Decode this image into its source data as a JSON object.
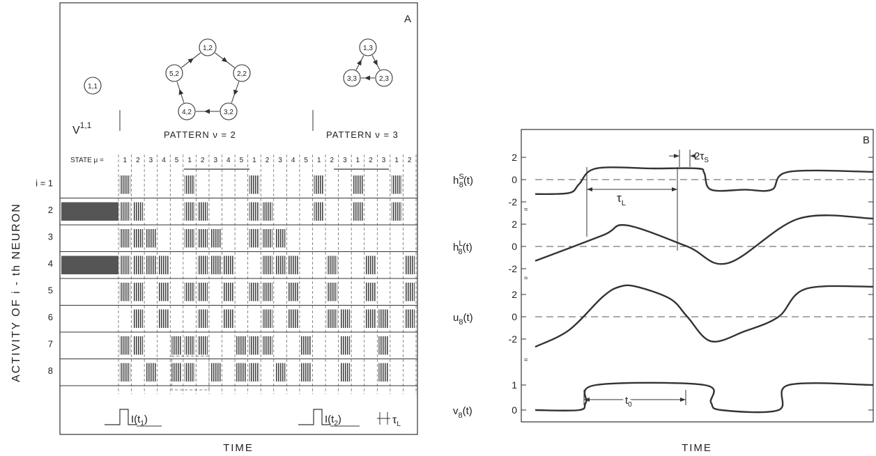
{
  "panel_a": {
    "label": "A",
    "ylabel": "ACTIVITY OF i - th NEURON",
    "xlabel": "TIME",
    "header_v": "V",
    "header_v_sup": "1,1",
    "pattern2_label": "PATTERN  ν = 2",
    "pattern3_label": "PATTERN  ν = 3",
    "state_label": "STATE μ =",
    "state_sequence": [
      "1",
      "2",
      "3",
      "4",
      "5",
      "1",
      "2",
      "3",
      "4",
      "5",
      "1",
      "2",
      "3",
      "4",
      "5",
      "1",
      "2",
      "3",
      "1",
      "2",
      "3",
      "1",
      "2"
    ],
    "row_labels": [
      "i = 1",
      "2",
      "3",
      "4",
      "5",
      "6",
      "7",
      "8"
    ],
    "input1_label": "I(t",
    "input1_sub": "1",
    "input2_label": "I(t",
    "input2_sub": "2",
    "tau_label": "τ",
    "tau_sub": "L",
    "graph_nodes": {
      "single": "1,1",
      "cycle2": [
        "1,2",
        "2,2",
        "3,2",
        "4,2",
        "5,2"
      ],
      "cycle3": [
        "1,3",
        "2,3",
        "3,3"
      ]
    }
  },
  "panel_b": {
    "label": "B",
    "xlabel": "TIME",
    "tau_L": "τ",
    "tau_L_sub": "L",
    "two_tau_s": "2τ",
    "two_tau_s_sub": "S",
    "t0": "t",
    "t0_sub": "0"
  },
  "chart_data": [
    {
      "type": "raster",
      "title": "",
      "xlabel": "TIME",
      "ylabel": "ACTIVITY OF i - th NEURON",
      "rows": [
        "1",
        "2",
        "3",
        "4",
        "5",
        "6",
        "7",
        "8"
      ],
      "states": [
        "1,1",
        "1,2",
        "2,2",
        "3,2",
        "4,2",
        "5,2",
        "1,2",
        "2,2",
        "3,2",
        "4,2",
        "5,2",
        "1,2",
        "2,2",
        "3,2",
        "4,2",
        "5,2",
        "1,3",
        "2,3",
        "3,3",
        "1,3",
        "2,3",
        "3,3",
        "1,3",
        "2,3"
      ],
      "activity": {
        "1": [
          0,
          1,
          0,
          0,
          0,
          0,
          1,
          0,
          0,
          0,
          0,
          1,
          0,
          0,
          0,
          0,
          1,
          0,
          0,
          1,
          0,
          0,
          1,
          0
        ],
        "2": [
          1,
          1,
          1,
          0,
          0,
          0,
          1,
          1,
          0,
          0,
          0,
          1,
          1,
          0,
          0,
          0,
          1,
          0,
          0,
          1,
          0,
          0,
          1,
          0
        ],
        "3": [
          0,
          1,
          1,
          1,
          0,
          0,
          1,
          1,
          1,
          0,
          0,
          1,
          1,
          1,
          0,
          0,
          0,
          0,
          0,
          0,
          0,
          0,
          0,
          0
        ],
        "4": [
          1,
          1,
          1,
          1,
          1,
          0,
          0,
          1,
          1,
          1,
          0,
          0,
          1,
          1,
          1,
          0,
          0,
          1,
          0,
          0,
          1,
          0,
          0,
          1
        ],
        "5": [
          0,
          1,
          1,
          0,
          1,
          0,
          1,
          1,
          0,
          1,
          0,
          1,
          1,
          0,
          1,
          0,
          0,
          1,
          0,
          0,
          1,
          0,
          0,
          1
        ],
        "6": [
          0,
          0,
          1,
          0,
          1,
          0,
          0,
          1,
          0,
          1,
          0,
          0,
          1,
          0,
          1,
          0,
          0,
          1,
          1,
          0,
          1,
          1,
          0,
          1
        ],
        "7": [
          0,
          1,
          1,
          0,
          0,
          1,
          1,
          1,
          0,
          0,
          1,
          1,
          1,
          0,
          0,
          1,
          0,
          0,
          1,
          0,
          0,
          1,
          0,
          0
        ],
        "8": [
          0,
          1,
          0,
          1,
          0,
          1,
          1,
          0,
          1,
          0,
          1,
          1,
          0,
          1,
          0,
          1,
          0,
          0,
          1,
          0,
          0,
          1,
          0,
          0
        ]
      }
    },
    {
      "type": "line",
      "title": "",
      "xlabel": "TIME",
      "series": [
        {
          "name": "h8S(t)",
          "ylabel": "h",
          "sup": "S",
          "sub": "8",
          "yticks": [
            2,
            0,
            -2
          ],
          "x": [
            0,
            0.1,
            0.13,
            0.18,
            0.35,
            0.48,
            0.5,
            0.52,
            0.62,
            0.7,
            0.75,
            1.0
          ],
          "y": [
            -1.3,
            -1.2,
            -0.4,
            1.0,
            1.0,
            1.0,
            0.6,
            -0.9,
            -0.9,
            -0.9,
            0.7,
            0.7
          ]
        },
        {
          "name": "h8L(t)",
          "ylabel": "h",
          "sup": "L",
          "sub": "8",
          "yticks": [
            2,
            0,
            -2
          ],
          "x": [
            0,
            0.2,
            0.27,
            0.45,
            0.57,
            0.78,
            1.0
          ],
          "y": [
            -1.3,
            1.0,
            1.9,
            0.0,
            -1.5,
            2.5,
            2.5
          ]
        },
        {
          "name": "u8(t)",
          "ylabel": "u",
          "sub": "8",
          "yticks": [
            2,
            0,
            -2
          ],
          "x": [
            0,
            0.1,
            0.2,
            0.25,
            0.3,
            0.4,
            0.45,
            0.52,
            0.62,
            0.72,
            0.8,
            1.0
          ],
          "y": [
            -2.7,
            -1.2,
            1.8,
            2.7,
            2.7,
            1.6,
            0.0,
            -2.2,
            -1.3,
            0.0,
            2.5,
            2.7
          ]
        },
        {
          "name": "v8(t)",
          "ylabel": "v",
          "sub": "8",
          "yticks": [
            1,
            0
          ],
          "x": [
            0,
            0.13,
            0.15,
            0.18,
            0.5,
            0.52,
            0.55,
            0.72,
            0.75,
            1.0
          ],
          "y": [
            0,
            0,
            0.3,
            1.0,
            1.0,
            0.3,
            0,
            0,
            1.0,
            1.0
          ]
        }
      ]
    }
  ]
}
